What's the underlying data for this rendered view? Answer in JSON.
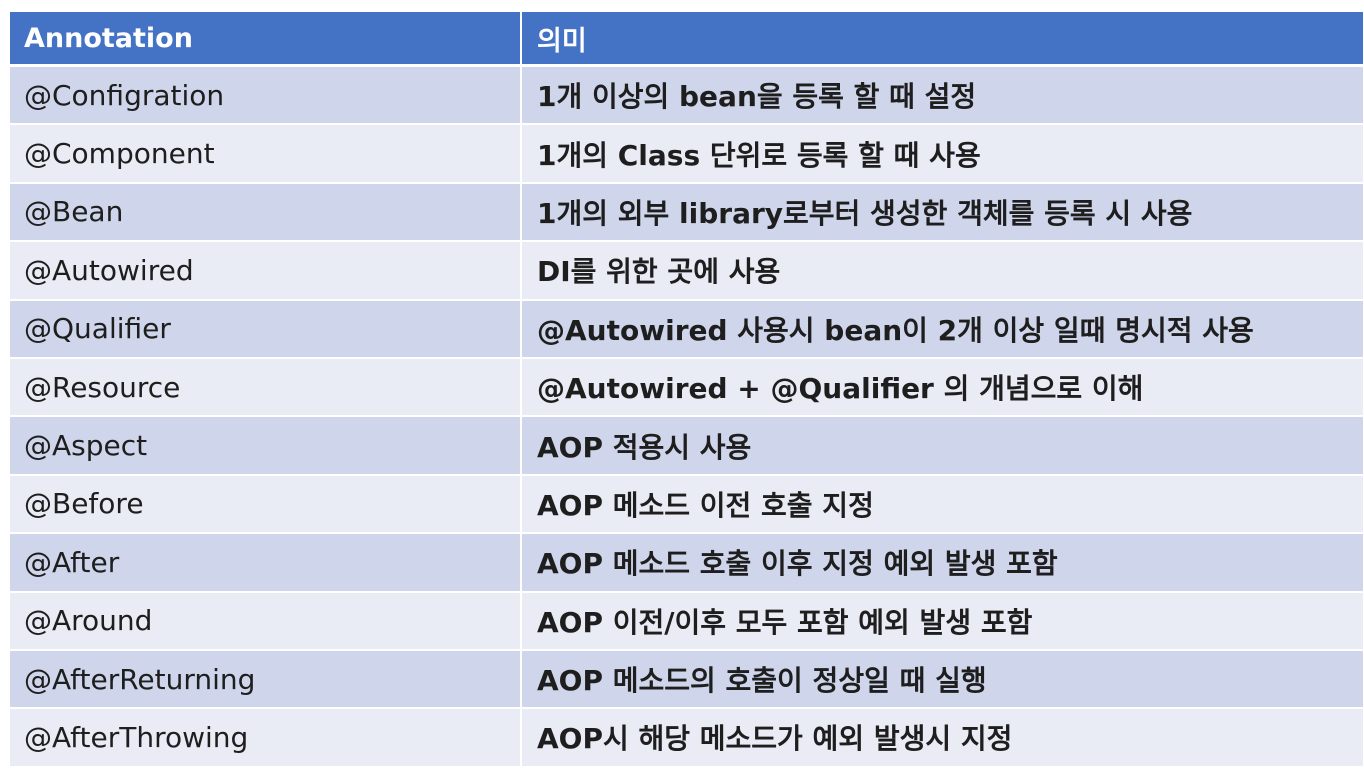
{
  "table": {
    "headers": [
      "Annotation",
      "의미"
    ],
    "rows": [
      {
        "annotation": "@Configration",
        "meaning": "1개 이상의 bean을 등록 할 때 설정"
      },
      {
        "annotation": "@Component",
        "meaning": "1개의 Class 단위로 등록 할 때 사용"
      },
      {
        "annotation": "@Bean",
        "meaning": "1개의 외부 library로부터 생성한 객체를 등록 시 사용"
      },
      {
        "annotation": "@Autowired",
        "meaning": "DI를 위한 곳에 사용"
      },
      {
        "annotation": "@Qualifier",
        "meaning": "@Autowired 사용시 bean이 2개 이상 일때 명시적 사용"
      },
      {
        "annotation": "@Resource",
        "meaning": "@Autowired + @Qualifier 의 개념으로 이해"
      },
      {
        "annotation": "@Aspect",
        "meaning": "AOP 적용시 사용"
      },
      {
        "annotation": "@Before",
        "meaning": "AOP 메소드 이전 호출 지정"
      },
      {
        "annotation": "@After",
        "meaning": "AOP 메소드 호출 이후 지정 예외 발생 포함"
      },
      {
        "annotation": "@Around",
        "meaning": "AOP 이전/이후 모두 포함 예외 발생 포함"
      },
      {
        "annotation": "@AfterReturning",
        "meaning": "AOP 메소드의 호출이 정상일 때 실행"
      },
      {
        "annotation": "@AfterThrowing",
        "meaning": "AOP시 해당 메소드가 예외 발생시 지정"
      }
    ]
  }
}
